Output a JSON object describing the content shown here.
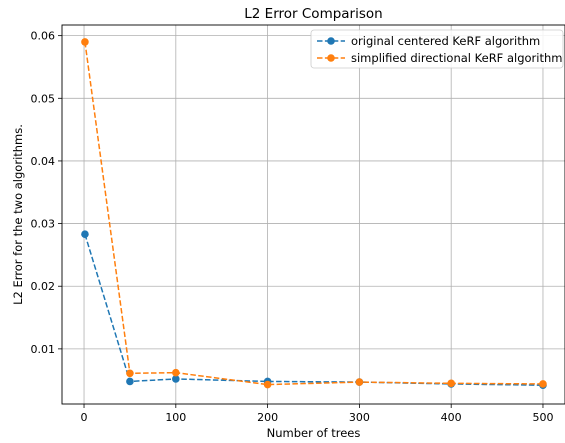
{
  "chart_data": {
    "type": "line",
    "title": "L2 Error Comparison",
    "xlabel": "Number of trees",
    "ylabel": "L2 Error  for the two algorithms.",
    "x": [
      1,
      50,
      100,
      200,
      300,
      400,
      500
    ],
    "series": [
      {
        "name": "original centered KeRF algorithm",
        "values": [
          0.0283,
          0.0048,
          0.0052,
          0.0048,
          0.0047,
          0.0044,
          0.0042
        ],
        "color": "#1f77b4",
        "linestyle": "dashed",
        "marker": "circle"
      },
      {
        "name": "simplified directional KeRF algorithm",
        "values": [
          0.059,
          0.0061,
          0.0062,
          0.0043,
          0.0047,
          0.0045,
          0.0044
        ],
        "color": "#ff7f0e",
        "linestyle": "dashed",
        "marker": "circle"
      }
    ],
    "xlim": [
      -24,
      524
    ],
    "ylim": [
      0.0012,
      0.0617
    ],
    "xticks": [
      0,
      100,
      200,
      300,
      400,
      500
    ],
    "xtick_labels": [
      "0",
      "100",
      "200",
      "300",
      "400",
      "500"
    ],
    "yticks": [
      0.01,
      0.02,
      0.03,
      0.04,
      0.05,
      0.06
    ],
    "ytick_labels": [
      "0.01",
      "0.02",
      "0.03",
      "0.04",
      "0.05",
      "0.06"
    ],
    "grid": true,
    "legend_position": "top-right"
  }
}
